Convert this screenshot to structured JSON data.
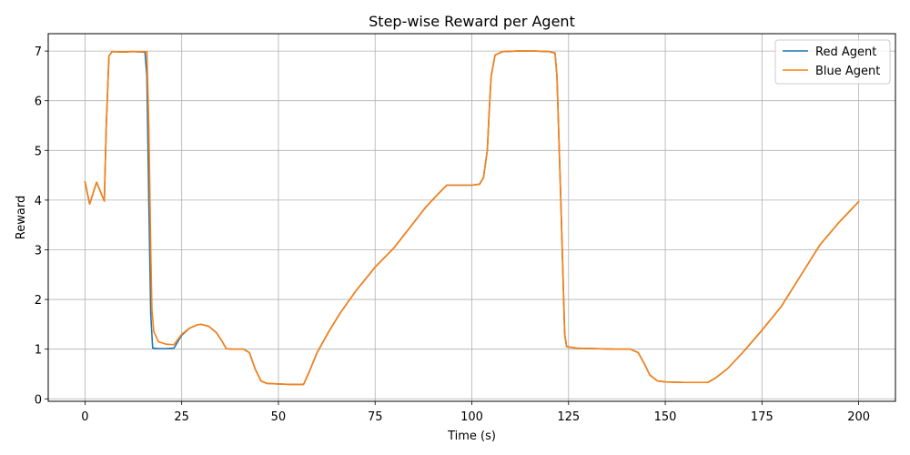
{
  "chart_data": {
    "type": "line",
    "title": "Step-wise Reward per Agent",
    "xlabel": "Time (s)",
    "ylabel": "Reward",
    "xlim": [
      -9.5,
      209.5
    ],
    "ylim": [
      -0.05,
      7.35
    ],
    "xticks": [
      0,
      25,
      50,
      75,
      100,
      125,
      150,
      175,
      200
    ],
    "yticks": [
      0,
      1,
      2,
      3,
      4,
      5,
      6,
      7
    ],
    "grid": true,
    "legend_position": "top-right",
    "series": [
      {
        "name": "Red Agent",
        "color": "#1f77b4",
        "points": [
          [
            0,
            4.37
          ],
          [
            1.2,
            3.92
          ],
          [
            3,
            4.36
          ],
          [
            5,
            3.98
          ],
          [
            5.5,
            5.5
          ],
          [
            6.2,
            6.9
          ],
          [
            7,
            6.99
          ],
          [
            10,
            6.98
          ],
          [
            12,
            6.99
          ],
          [
            15.5,
            6.98
          ],
          [
            16,
            6.5
          ],
          [
            16.5,
            4.0
          ],
          [
            17,
            1.7
          ],
          [
            17.5,
            1.02
          ],
          [
            19,
            1.01
          ],
          [
            21,
            1.01
          ],
          [
            23,
            1.02
          ],
          [
            25,
            1.28
          ],
          [
            27,
            1.42
          ],
          [
            29,
            1.49
          ],
          [
            30,
            1.5
          ],
          [
            32,
            1.46
          ],
          [
            34,
            1.33
          ],
          [
            35.5,
            1.15
          ],
          [
            36.5,
            1.01
          ],
          [
            38,
            1.0
          ],
          [
            41,
            1.0
          ],
          [
            42.5,
            0.93
          ],
          [
            44,
            0.6
          ],
          [
            45.5,
            0.36
          ],
          [
            47,
            0.31
          ],
          [
            50,
            0.3
          ],
          [
            53,
            0.29
          ],
          [
            56.5,
            0.29
          ],
          [
            58,
            0.55
          ],
          [
            60,
            0.93
          ],
          [
            63,
            1.35
          ],
          [
            66,
            1.73
          ],
          [
            70,
            2.17
          ],
          [
            75,
            2.65
          ],
          [
            80,
            3.05
          ],
          [
            85,
            3.55
          ],
          [
            88,
            3.85
          ],
          [
            91,
            4.1
          ],
          [
            93.5,
            4.3
          ],
          [
            96,
            4.3
          ],
          [
            100,
            4.3
          ],
          [
            102,
            4.32
          ],
          [
            103,
            4.45
          ],
          [
            104,
            5.0
          ],
          [
            104.5,
            5.8
          ],
          [
            105,
            6.5
          ],
          [
            106,
            6.92
          ],
          [
            108,
            6.99
          ],
          [
            112,
            7.0
          ],
          [
            116,
            7.0
          ],
          [
            120,
            6.99
          ],
          [
            121.5,
            6.96
          ],
          [
            122,
            6.5
          ],
          [
            123,
            4.0
          ],
          [
            124,
            1.3
          ],
          [
            124.5,
            1.05
          ],
          [
            127,
            1.02
          ],
          [
            132,
            1.01
          ],
          [
            137,
            1.0
          ],
          [
            141,
            1.0
          ],
          [
            143,
            0.93
          ],
          [
            144.5,
            0.72
          ],
          [
            146,
            0.48
          ],
          [
            148,
            0.36
          ],
          [
            150,
            0.34
          ],
          [
            155,
            0.33
          ],
          [
            161,
            0.33
          ],
          [
            163,
            0.42
          ],
          [
            166,
            0.6
          ],
          [
            170,
            0.93
          ],
          [
            175,
            1.38
          ],
          [
            180,
            1.86
          ],
          [
            185,
            2.48
          ],
          [
            190,
            3.1
          ],
          [
            195,
            3.56
          ],
          [
            200,
            3.97
          ]
        ]
      },
      {
        "name": "Blue Agent",
        "color": "#ff7f0e",
        "points": [
          [
            0,
            4.37
          ],
          [
            1.2,
            3.92
          ],
          [
            3,
            4.36
          ],
          [
            5,
            3.98
          ],
          [
            5.5,
            5.5
          ],
          [
            6.2,
            6.9
          ],
          [
            7,
            6.99
          ],
          [
            10,
            6.98
          ],
          [
            12,
            6.99
          ],
          [
            16,
            6.99
          ],
          [
            16.5,
            5.5
          ],
          [
            17,
            3.0
          ],
          [
            17.3,
            1.8
          ],
          [
            17.8,
            1.35
          ],
          [
            19,
            1.15
          ],
          [
            21,
            1.1
          ],
          [
            23,
            1.09
          ],
          [
            25,
            1.3
          ],
          [
            27,
            1.42
          ],
          [
            29,
            1.49
          ],
          [
            30,
            1.5
          ],
          [
            32,
            1.46
          ],
          [
            34,
            1.33
          ],
          [
            35.5,
            1.15
          ],
          [
            36.5,
            1.01
          ],
          [
            38,
            1.0
          ],
          [
            41,
            1.0
          ],
          [
            42.5,
            0.93
          ],
          [
            44,
            0.6
          ],
          [
            45.5,
            0.36
          ],
          [
            47,
            0.31
          ],
          [
            50,
            0.3
          ],
          [
            53,
            0.29
          ],
          [
            56.5,
            0.29
          ],
          [
            58,
            0.55
          ],
          [
            60,
            0.93
          ],
          [
            63,
            1.35
          ],
          [
            66,
            1.73
          ],
          [
            70,
            2.17
          ],
          [
            75,
            2.65
          ],
          [
            80,
            3.05
          ],
          [
            85,
            3.55
          ],
          [
            88,
            3.85
          ],
          [
            91,
            4.1
          ],
          [
            93.5,
            4.3
          ],
          [
            96,
            4.3
          ],
          [
            100,
            4.3
          ],
          [
            102,
            4.32
          ],
          [
            103,
            4.45
          ],
          [
            104,
            5.0
          ],
          [
            104.5,
            5.8
          ],
          [
            105,
            6.5
          ],
          [
            106,
            6.92
          ],
          [
            108,
            6.99
          ],
          [
            112,
            7.0
          ],
          [
            116,
            7.0
          ],
          [
            120,
            6.99
          ],
          [
            121.5,
            6.96
          ],
          [
            122,
            6.5
          ],
          [
            123,
            4.0
          ],
          [
            124,
            1.3
          ],
          [
            124.5,
            1.05
          ],
          [
            127,
            1.02
          ],
          [
            132,
            1.01
          ],
          [
            137,
            1.0
          ],
          [
            141,
            1.0
          ],
          [
            143,
            0.93
          ],
          [
            144.5,
            0.72
          ],
          [
            146,
            0.48
          ],
          [
            148,
            0.36
          ],
          [
            150,
            0.34
          ],
          [
            155,
            0.33
          ],
          [
            161,
            0.33
          ],
          [
            163,
            0.42
          ],
          [
            166,
            0.6
          ],
          [
            170,
            0.93
          ],
          [
            175,
            1.38
          ],
          [
            180,
            1.86
          ],
          [
            185,
            2.48
          ],
          [
            190,
            3.1
          ],
          [
            195,
            3.56
          ],
          [
            200,
            3.97
          ]
        ]
      }
    ]
  }
}
